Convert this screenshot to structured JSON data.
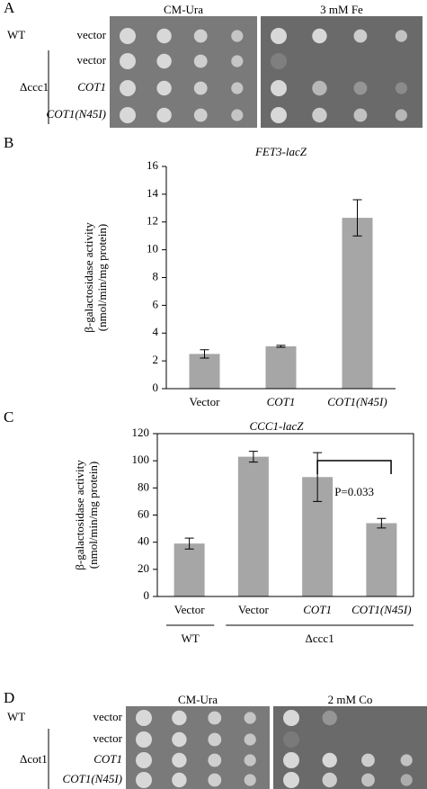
{
  "panels": {
    "A": {
      "label": "A",
      "conditions": [
        "CM-Ura",
        "3 mM Fe"
      ],
      "strain_labels": [
        "WT",
        "Δccc1"
      ],
      "rows": [
        "vector",
        "vector",
        "COT1",
        "COT1(N45I)"
      ]
    },
    "D": {
      "label": "D",
      "conditions": [
        "CM-Ura",
        "2 mM Co"
      ],
      "strain_labels": [
        "WT",
        "Δcot1"
      ],
      "rows": [
        "vector",
        "vector",
        "COT1",
        "COT1(N45I)"
      ]
    }
  },
  "chart_data": [
    {
      "type": "bar",
      "panel_label": "B",
      "title": "FET3-lacZ",
      "ylabel": [
        "β-galactosidase activity",
        "(nmol/min/mg protein)"
      ],
      "categories": [
        "Vector",
        "COT1",
        "COT1(N45I)"
      ],
      "values": [
        2.5,
        3.05,
        12.3
      ],
      "errors": [
        0.3,
        0.07,
        1.3
      ],
      "color": "#a6a6a6",
      "ylim": [
        0,
        16
      ],
      "yticks": [
        0,
        2,
        4,
        6,
        8,
        10,
        12,
        14,
        16
      ],
      "frame": false
    },
    {
      "type": "bar",
      "panel_label": "C",
      "title": "CCC1-lacZ",
      "ylabel": [
        "β-galactosidase activity",
        "(nmol/min/mg protein)"
      ],
      "categories": [
        "Vector",
        "Vector",
        "COT1",
        "COT1(N45I)"
      ],
      "values": [
        39,
        103,
        88,
        54
      ],
      "errors": [
        4,
        4,
        18,
        3.5
      ],
      "group_labels": [
        "WT",
        "Δccc1"
      ],
      "annotation": "P=0.033",
      "color": "#a6a6a6",
      "ylim": [
        0,
        120
      ],
      "yticks": [
        0,
        20,
        40,
        60,
        80,
        100,
        120
      ],
      "frame": true
    }
  ]
}
